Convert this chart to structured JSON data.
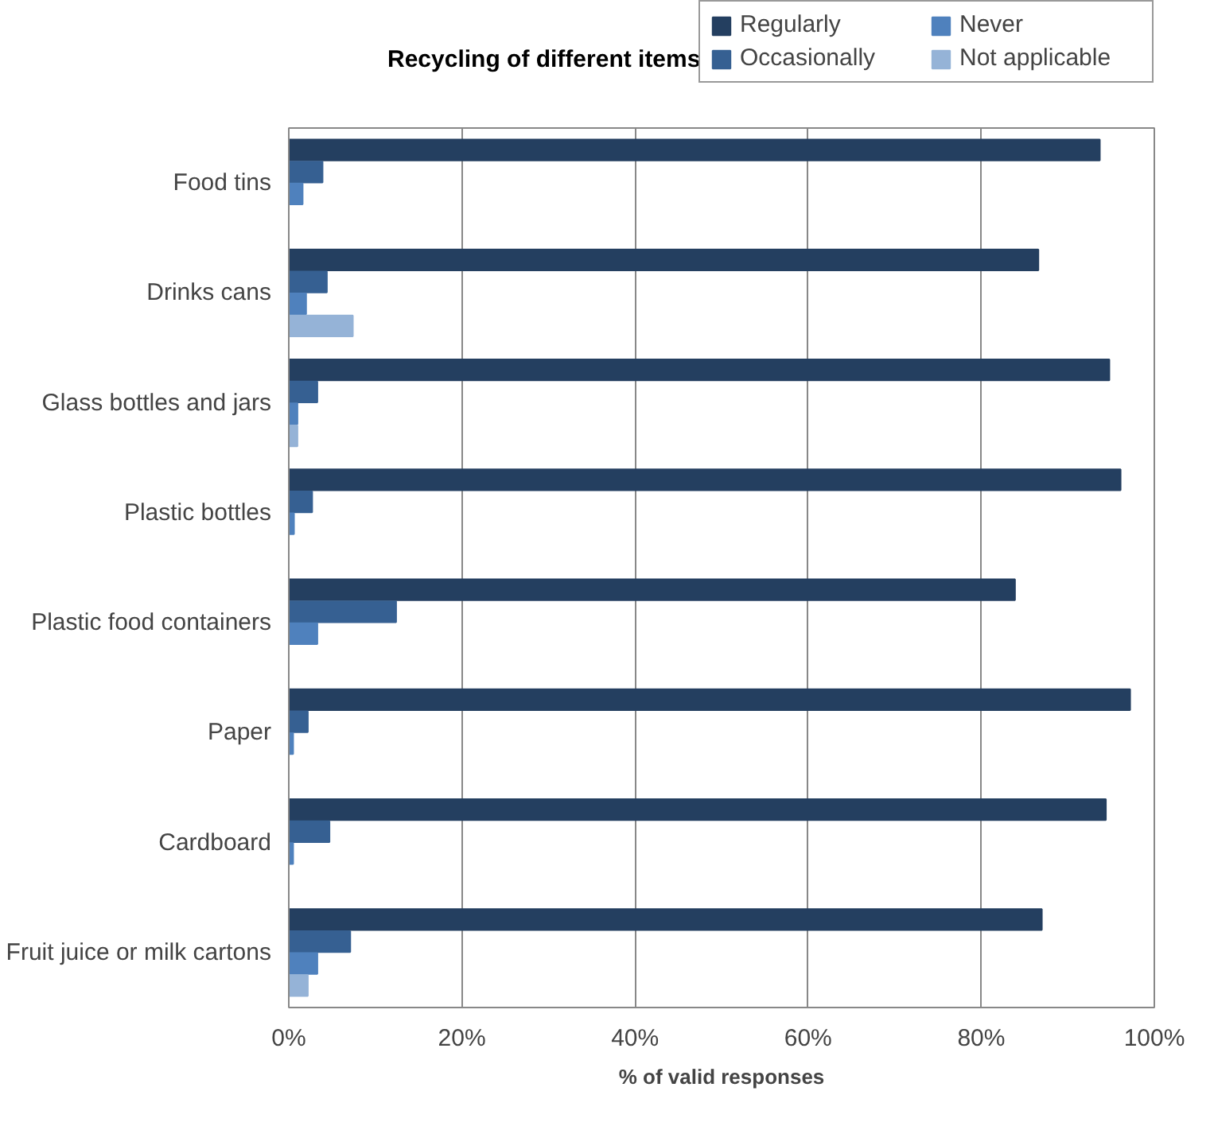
{
  "chart_data": {
    "type": "bar",
    "orientation": "horizontal",
    "title": "Recycling of different items",
    "xlabel": "% of valid responses",
    "categories": [
      "Food tins",
      "Drinks cans",
      "Glass bottles and jars",
      "Plastic bottles",
      "Plastic food containers",
      "Paper",
      "Cardboard",
      "Fruit juice or milk cartons"
    ],
    "series": [
      {
        "name": "Regularly",
        "color": "#243f60",
        "values": [
          93.7,
          86.6,
          94.8,
          96.1,
          83.9,
          97.2,
          94.4,
          87.0
        ]
      },
      {
        "name": "Occasionally",
        "color": "#366092",
        "values": [
          3.9,
          4.4,
          3.3,
          2.7,
          12.4,
          2.2,
          4.7,
          7.1
        ]
      },
      {
        "name": "Never",
        "color": "#4f81bd",
        "values": [
          1.6,
          2.0,
          1.0,
          0.6,
          3.3,
          0.5,
          0.5,
          3.3
        ]
      },
      {
        "name": "Not applicable",
        "color": "#95b3d7",
        "values": [
          0,
          7.4,
          1.0,
          0,
          0,
          0,
          0,
          2.2
        ]
      }
    ],
    "xlim": [
      0,
      100
    ],
    "xticks": [
      {
        "value": 0,
        "label": "0%"
      },
      {
        "value": 20,
        "label": "20%"
      },
      {
        "value": 40,
        "label": "40%"
      },
      {
        "value": 60,
        "label": "60%"
      },
      {
        "value": 80,
        "label": "80%"
      },
      {
        "value": 100,
        "label": "100%"
      }
    ],
    "grid": "x",
    "legend": "top right"
  }
}
